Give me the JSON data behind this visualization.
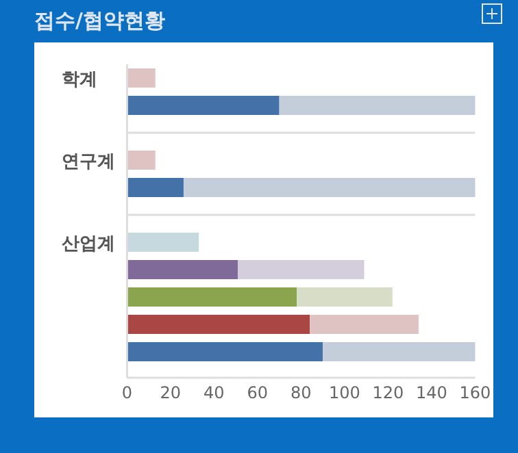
{
  "chart_data": {
    "type": "bar",
    "title": "접수/협약현황",
    "orientation": "horizontal",
    "stacked": true,
    "categories": [
      "학계",
      null,
      null,
      "연구계",
      null,
      null,
      "산업계",
      null,
      null,
      null,
      null
    ],
    "xlim": [
      0,
      160
    ],
    "xticks": [
      0,
      20,
      40,
      60,
      80,
      100,
      120,
      140,
      160
    ],
    "series": [
      {
        "values": [
          null,
          70,
          null,
          null,
          26,
          null,
          null,
          51,
          78,
          84,
          90
        ],
        "colors": [
          null,
          "#4472a8",
          null,
          null,
          "#4472a8",
          null,
          null,
          "#7f6a9a",
          "#8aa54d",
          "#aa4644",
          "#4472a8"
        ]
      },
      {
        "values": [
          13,
          90,
          null,
          13,
          134,
          null,
          33,
          58,
          44,
          50,
          70
        ],
        "colors": [
          "#dfc2c2",
          "#c4cedb",
          null,
          "#dfc2c2",
          "#c4cedb",
          null,
          "#c5d9df",
          "#d4cddb",
          "#d7ddc6",
          "#dfc2c2",
          "#c4cedb"
        ]
      }
    ]
  }
}
